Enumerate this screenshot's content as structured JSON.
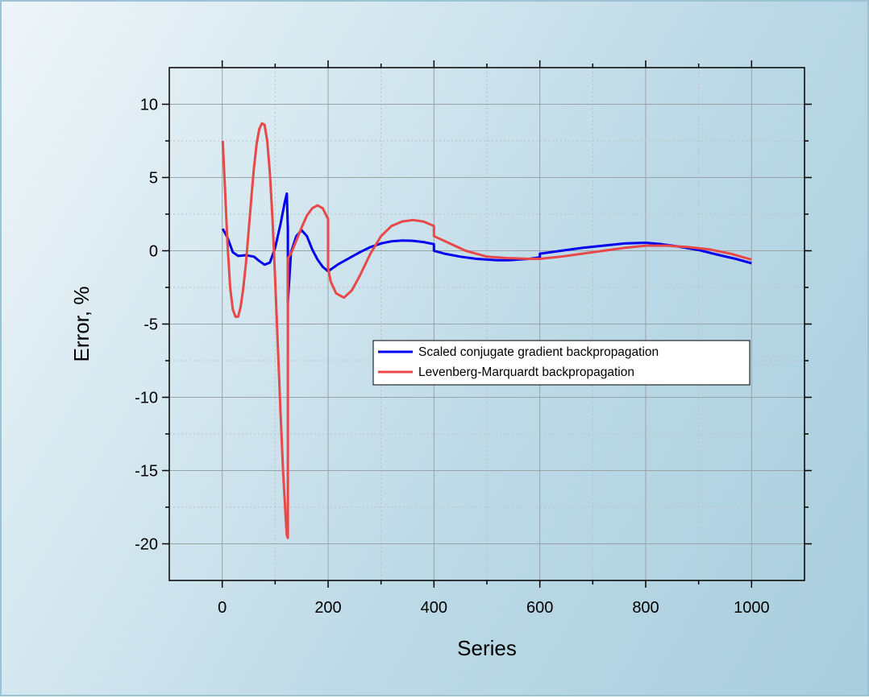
{
  "chart_data": {
    "type": "line",
    "xlabel": "Series",
    "ylabel": "Error, %",
    "xlim": [
      -100,
      1100
    ],
    "ylim": [
      -22.5,
      12.5
    ],
    "xticks": [
      0,
      200,
      400,
      600,
      800,
      1000
    ],
    "xtick_labels": [
      "0",
      "200",
      "400",
      "600",
      "800",
      "1000"
    ],
    "yticks": [
      10,
      5,
      0,
      -5,
      -10,
      -15,
      -20
    ],
    "ytick_labels": [
      "10",
      "5",
      "0",
      "-5",
      "-10",
      "-15",
      "-20"
    ],
    "grid": true,
    "legend_position": "right-middle",
    "series": [
      {
        "name": "Scaled conjugate gradient backpropagation",
        "color": "#0000ee",
        "x": [
          1,
          10,
          20,
          30,
          45,
          60,
          70,
          80,
          90,
          100,
          110,
          118,
          122,
          124,
          124,
          130,
          140,
          150,
          160,
          170,
          180,
          190,
          200,
          220,
          240,
          260,
          280,
          300,
          320,
          340,
          360,
          380,
          400,
          400,
          420,
          450,
          480,
          500,
          520,
          540,
          560,
          580,
          600,
          600,
          640,
          680,
          720,
          760,
          800,
          830,
          860,
          900,
          940,
          970,
          1000
        ],
        "y": [
          1.5,
          0.9,
          -0.1,
          -0.35,
          -0.3,
          -0.4,
          -0.7,
          -0.95,
          -0.8,
          0.2,
          1.8,
          3.3,
          3.9,
          1.5,
          -3.5,
          -0.1,
          1.0,
          1.4,
          1.0,
          0.1,
          -0.6,
          -1.1,
          -1.4,
          -0.9,
          -0.5,
          -0.1,
          0.25,
          0.5,
          0.65,
          0.7,
          0.68,
          0.6,
          0.45,
          0.0,
          -0.2,
          -0.4,
          -0.55,
          -0.6,
          -0.65,
          -0.65,
          -0.6,
          -0.55,
          -0.45,
          -0.2,
          0.0,
          0.2,
          0.35,
          0.5,
          0.55,
          0.45,
          0.3,
          0.05,
          -0.3,
          -0.55,
          -0.85
        ]
      },
      {
        "name": "Levenberg-Marquardt backpropagation",
        "color": "#e84848",
        "x": [
          1,
          5,
          10,
          15,
          20,
          25,
          30,
          35,
          40,
          45,
          50,
          55,
          60,
          65,
          70,
          75,
          80,
          85,
          90,
          95,
          100,
          105,
          110,
          115,
          120,
          122,
          124,
          124,
          130,
          140,
          150,
          160,
          170,
          180,
          190,
          198,
          200,
          200,
          205,
          215,
          230,
          245,
          260,
          280,
          300,
          320,
          340,
          360,
          380,
          400,
          400,
          430,
          460,
          500,
          540,
          580,
          600,
          600,
          640,
          680,
          720,
          760,
          800,
          840,
          880,
          920,
          960,
          1000
        ],
        "y": [
          7.5,
          4.5,
          0.5,
          -2.5,
          -4.0,
          -4.5,
          -4.5,
          -3.8,
          -2.5,
          -0.8,
          1.4,
          3.6,
          5.7,
          7.3,
          8.3,
          8.7,
          8.6,
          7.5,
          5.3,
          2.1,
          -1.9,
          -6.4,
          -10.9,
          -15.1,
          -18.3,
          -19.4,
          -19.6,
          -0.5,
          -0.2,
          0.7,
          1.6,
          2.4,
          2.9,
          3.1,
          2.9,
          2.3,
          2.2,
          -1.2,
          -2.1,
          -2.9,
          -3.2,
          -2.7,
          -1.7,
          -0.2,
          1.0,
          1.7,
          2.0,
          2.1,
          2.0,
          1.7,
          1.0,
          0.5,
          0.0,
          -0.4,
          -0.5,
          -0.55,
          -0.55,
          -0.55,
          -0.4,
          -0.2,
          0.0,
          0.2,
          0.35,
          0.35,
          0.25,
          0.1,
          -0.2,
          -0.6
        ]
      }
    ]
  }
}
